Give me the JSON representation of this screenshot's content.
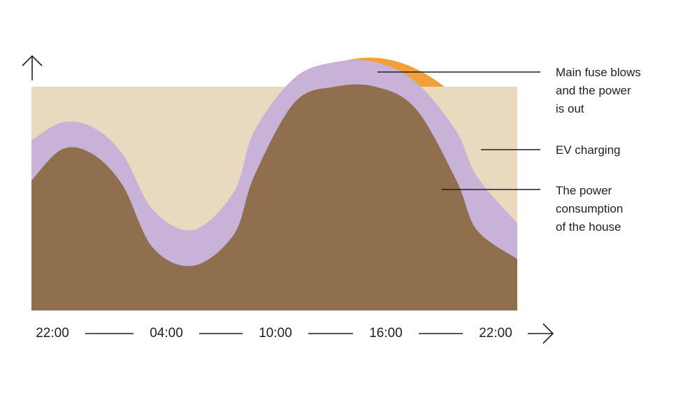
{
  "chart_data": {
    "type": "area",
    "title": "",
    "xlabel": "",
    "ylabel": "",
    "x_ticks": [
      "22:00",
      "04:00",
      "10:00",
      "16:00",
      "22:00"
    ],
    "x_range": [
      0,
      24
    ],
    "capacity_level": 100,
    "series": [
      {
        "key": "house",
        "name": "The power consumption of the house",
        "color": "#8f6f4d",
        "points": [
          [
            0,
            58
          ],
          [
            1.5,
            72
          ],
          [
            3,
            70
          ],
          [
            4.5,
            56
          ],
          [
            6,
            28
          ],
          [
            8,
            20
          ],
          [
            10,
            34
          ],
          [
            11,
            60
          ],
          [
            13,
            93
          ],
          [
            15,
            100
          ],
          [
            17,
            100
          ],
          [
            19,
            90
          ],
          [
            21,
            58
          ],
          [
            22,
            36
          ],
          [
            24,
            23
          ]
        ]
      },
      {
        "key": "ev",
        "name": "EV charging",
        "color": "#c8b2d8",
        "points": [
          [
            0,
            76
          ],
          [
            1.5,
            84
          ],
          [
            3,
            82
          ],
          [
            4.5,
            70
          ],
          [
            6,
            45
          ],
          [
            8,
            36
          ],
          [
            10,
            53
          ],
          [
            11,
            80
          ],
          [
            13,
            104
          ],
          [
            15,
            111
          ],
          [
            17,
            111
          ],
          [
            19,
            102
          ],
          [
            21,
            80
          ],
          [
            22,
            60
          ],
          [
            24,
            39
          ]
        ]
      },
      {
        "key": "over",
        "name": "Main fuse blows and the power is out",
        "color": "#f4a03a",
        "arc_from": 13.0,
        "arc_to": 20.4,
        "peak": 113
      }
    ],
    "background_color": "#e8d9bf",
    "grid": false
  },
  "annotations": [
    {
      "key": "over",
      "lines": [
        "Main fuse blows",
        "and the power",
        "is out"
      ]
    },
    {
      "key": "ev",
      "lines": [
        "EV charging"
      ]
    },
    {
      "key": "house",
      "lines": [
        "The power",
        "consumption",
        "of the house"
      ]
    }
  ]
}
